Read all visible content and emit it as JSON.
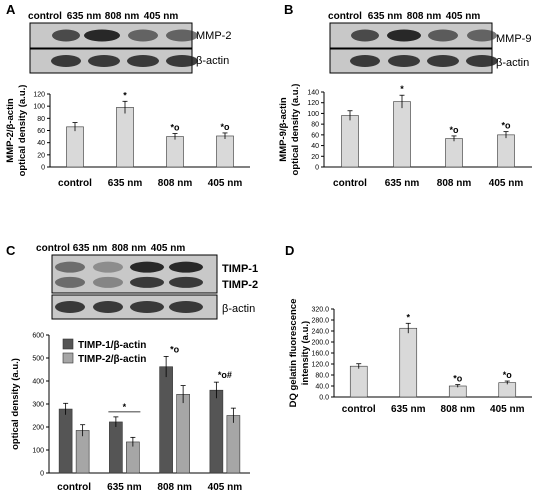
{
  "panels": [
    {
      "letter": "A",
      "lanes": [
        "control",
        "635 nm",
        "808 nm",
        "405 nm"
      ],
      "blots": [
        "MMP-2",
        "β-actin"
      ],
      "chart_data": {
        "type": "bar",
        "categories": [
          "control",
          "635 nm",
          "808 nm",
          "405 nm"
        ],
        "values": [
          66,
          98,
          50,
          51
        ],
        "errors": [
          7,
          10,
          5,
          5
        ],
        "marks": [
          "",
          "*",
          "*o",
          "*o"
        ],
        "ylabel": [
          "MMP-2/β-actin",
          "optical density (a.u.)"
        ],
        "ylim": [
          0,
          120
        ],
        "yticks": [
          "0",
          "20",
          "40",
          "60",
          "80",
          "100",
          "120"
        ]
      }
    },
    {
      "letter": "B",
      "lanes": [
        "control",
        "635 nm",
        "808 nm",
        "405 nm"
      ],
      "blots": [
        "MMP-9",
        "β-actin"
      ],
      "chart_data": {
        "type": "bar",
        "categories": [
          "control",
          "635 nm",
          "808 nm",
          "405 nm"
        ],
        "values": [
          96,
          122,
          53,
          60
        ],
        "errors": [
          9,
          12,
          5,
          6
        ],
        "marks": [
          "",
          "*",
          "*o",
          "*o"
        ],
        "ylabel": [
          "MMP-9/β-actin",
          "optical density (a.u.)"
        ],
        "ylim": [
          0,
          140
        ],
        "yticks": [
          "0",
          "20",
          "40",
          "60",
          "80",
          "100",
          "120",
          "140"
        ]
      }
    },
    {
      "letter": "C",
      "lanes": [
        "control",
        "635 nm",
        "808 nm",
        "405 nm"
      ],
      "blots": [
        "TIMP-1",
        "TIMP-2",
        "β-actin"
      ],
      "chart_data": {
        "type": "bar",
        "categories": [
          "control",
          "635 nm",
          "808 nm",
          "405 nm"
        ],
        "series": [
          {
            "name": "TIMP-1/β-actin",
            "values": [
              278,
              222,
              462,
              360
            ],
            "errors": [
              25,
              22,
              45,
              35
            ],
            "color": "#555555"
          },
          {
            "name": "TIMP-2/β-actin",
            "values": [
              185,
              135,
              342,
              250
            ],
            "errors": [
              25,
              20,
              38,
              32
            ],
            "color": "#a6a6a6"
          }
        ],
        "marks": [
          "",
          "*",
          "*o",
          "*o#"
        ],
        "ylabel": [
          "optical density (a.u.)"
        ],
        "ylim": [
          0,
          600
        ],
        "yticks": [
          "0",
          "100",
          "200",
          "300",
          "400",
          "500",
          "600"
        ],
        "legend": "top-left"
      }
    },
    {
      "letter": "D",
      "lanes": [],
      "blots": [],
      "chart_data": {
        "type": "bar",
        "categories": [
          "control",
          "635 nm",
          "808 nm",
          "405 nm"
        ],
        "values": [
          112,
          250,
          40,
          52
        ],
        "errors": [
          9,
          18,
          5,
          6
        ],
        "marks": [
          "",
          "*",
          "*o",
          "*o"
        ],
        "ylabel": [
          "DQ gelatin fluorescence",
          "intensity (a.u.)"
        ],
        "ylim": [
          0,
          320
        ],
        "yticks": [
          "0.0",
          "40.0",
          "80.0",
          "120.0",
          "160.0",
          "200.0",
          "240.0",
          "280.0",
          "320.0"
        ]
      }
    }
  ],
  "colors": {
    "bar": "#d9d9d9",
    "dark": "#555555",
    "light": "#a6a6a6"
  }
}
